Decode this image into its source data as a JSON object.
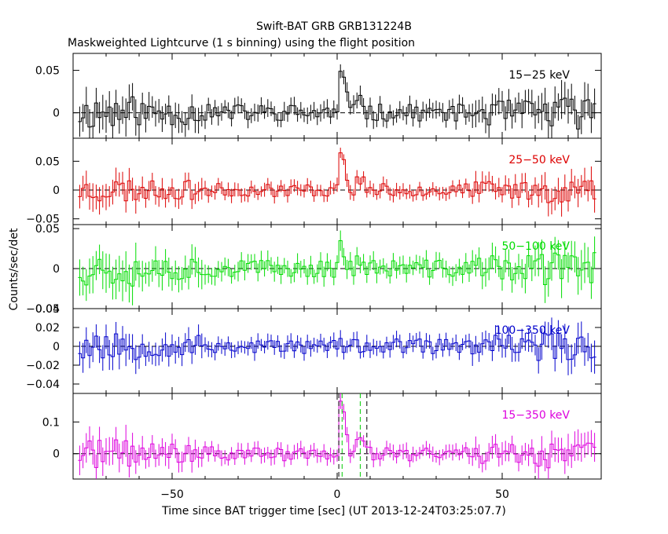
{
  "chart_data": {
    "type": "line",
    "title": "Swift-BAT GRB GRB131224B",
    "subtitle": "Maskweighted Lightcurve (1 s binning) using the flight position",
    "xlabel": "Time since BAT trigger time [sec] (UT 2013-12-24T03:25:07.7)",
    "ylabel": "Counts/sec/det",
    "xlim": [
      -80,
      80
    ],
    "x_ticks": [
      -50,
      0,
      50
    ],
    "x_tick_labels": [
      "−50",
      "0",
      "50"
    ],
    "panels": [
      {
        "name": "15-25",
        "label": "15−25 keV",
        "color": "#000000",
        "ylim": [
          -0.03,
          0.07
        ],
        "ticks": [
          0,
          0.05
        ],
        "tick_labels": [
          "0",
          "0.05"
        ],
        "noise": 0.018,
        "peaks": [
          [
            1,
            0.045
          ],
          [
            2,
            0.035
          ],
          [
            3,
            0.02
          ],
          [
            6,
            0.02
          ],
          [
            7,
            0.025
          ],
          [
            8,
            0.015
          ]
        ],
        "seed": 11
      },
      {
        "name": "25-50",
        "label": "25−50 keV",
        "color": "#dd0000",
        "ylim": [
          -0.06,
          0.09
        ],
        "ticks": [
          -0.05,
          0,
          0.05
        ],
        "tick_labels": [
          "−0.05",
          "0",
          "0.05"
        ],
        "noise": 0.02,
        "peaks": [
          [
            1,
            0.075
          ],
          [
            2,
            0.05
          ],
          [
            3,
            0.02
          ],
          [
            6,
            0.015
          ],
          [
            7,
            0.02
          ],
          [
            8,
            0.015
          ]
        ],
        "seed": 23
      },
      {
        "name": "50-100",
        "label": "50−100 keV",
        "color": "#00dd00",
        "ylim": [
          -0.05,
          0.055
        ],
        "ticks": [
          -0.05,
          0,
          0.05
        ],
        "tick_labels": [
          "−0.05",
          "0",
          "0.05"
        ],
        "noise": 0.02,
        "peaks": [
          [
            1,
            0.04
          ],
          [
            2,
            0.025
          ],
          [
            6,
            0.01
          ],
          [
            7,
            0.015
          ]
        ],
        "seed": 37
      },
      {
        "name": "100-350",
        "label": "100−350 keV",
        "color": "#0000cc",
        "ylim": [
          -0.05,
          0.04
        ],
        "ticks": [
          -0.04,
          -0.02,
          0,
          0.02,
          0.04
        ],
        "tick_labels": [
          "−0.04",
          "−0.02",
          "0",
          "0.02",
          "0.04"
        ],
        "noise": 0.014,
        "peaks": [
          [
            1,
            0.01
          ],
          [
            3,
            -0.008
          ]
        ],
        "seed": 53
      },
      {
        "name": "15-350",
        "label": "15−350 keV",
        "color": "#dd00dd",
        "ylim": [
          -0.08,
          0.19
        ],
        "ticks": [
          0,
          0.1
        ],
        "tick_labels": [
          "0",
          "0.1"
        ],
        "noise": 0.04,
        "peaks": [
          [
            1,
            0.17
          ],
          [
            2,
            0.12
          ],
          [
            3,
            0.04
          ],
          [
            6,
            0.05
          ],
          [
            7,
            0.06
          ],
          [
            8,
            0.03
          ]
        ],
        "seed": 71,
        "markers": {
          "black": [
            0.5,
            9
          ],
          "green": [
            1.5,
            7
          ]
        }
      }
    ]
  }
}
